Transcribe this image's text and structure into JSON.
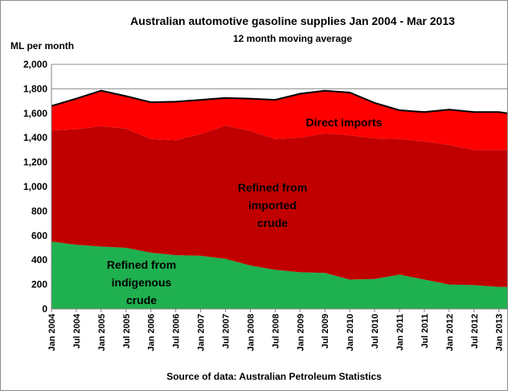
{
  "chart_data": {
    "type": "area",
    "title": "Australian automotive gasoline supplies Jan 2004 - Mar 2013",
    "subtitle": "12 month moving average",
    "ylabel": "ML per month",
    "source": "Source of data: Australian Petroleum Statistics",
    "ylim": [
      0,
      2000
    ],
    "yticks": [
      "0",
      "200",
      "400",
      "600",
      "800",
      "1,000",
      "1,200",
      "1,400",
      "1,600",
      "1,800",
      "2,000"
    ],
    "xticks": [
      "Jan 2004",
      "Jul 2004",
      "Jan 2005",
      "Jul 2005",
      "Jan 2006",
      "Jul 2006",
      "Jan 2007",
      "Jul 2007",
      "Jan 2008",
      "Jul 2008",
      "Jan 2009",
      "Jul 2009",
      "Jan 2010",
      "Jul 2010",
      "Jan 2011",
      "Jul 2011",
      "Jan 2012",
      "Jul 2012",
      "Jan 2013"
    ],
    "x": [
      "Jan 2004",
      "Jul 2004",
      "Jan 2005",
      "Jul 2005",
      "Jan 2006",
      "Jul 2006",
      "Jan 2007",
      "Jul 2007",
      "Jan 2008",
      "Jul 2008",
      "Jan 2009",
      "Jul 2009",
      "Jan 2010",
      "Jul 2010",
      "Jan 2011",
      "Jul 2011",
      "Jan 2012",
      "Jul 2012",
      "Jan 2013",
      "Mar 2013"
    ],
    "stacked": true,
    "grid": true,
    "series": [
      {
        "name": "Refined from indigenous crude",
        "annotation_lines": [
          "Refined from",
          "indigenous",
          "crude"
        ],
        "color": "#1fb050",
        "values": [
          550,
          525,
          510,
          500,
          460,
          440,
          435,
          410,
          355,
          320,
          300,
          295,
          240,
          245,
          280,
          240,
          200,
          195,
          180,
          180
        ]
      },
      {
        "name": "Refined from imported crude",
        "annotation_lines": [
          "Refined from",
          "imported",
          "crude"
        ],
        "color": "#c00000",
        "values": [
          910,
          945,
          985,
          975,
          930,
          940,
          995,
          1090,
          1100,
          1070,
          1100,
          1140,
          1180,
          1150,
          1110,
          1130,
          1140,
          1105,
          1120,
          1120
        ]
      },
      {
        "name": "Direct imports",
        "annotation_lines": [
          "Direct imports"
        ],
        "color": "#ff0000",
        "values": [
          200,
          250,
          290,
          265,
          300,
          315,
          280,
          225,
          265,
          320,
          360,
          350,
          350,
          290,
          235,
          240,
          290,
          310,
          310,
          300
        ]
      }
    ]
  }
}
